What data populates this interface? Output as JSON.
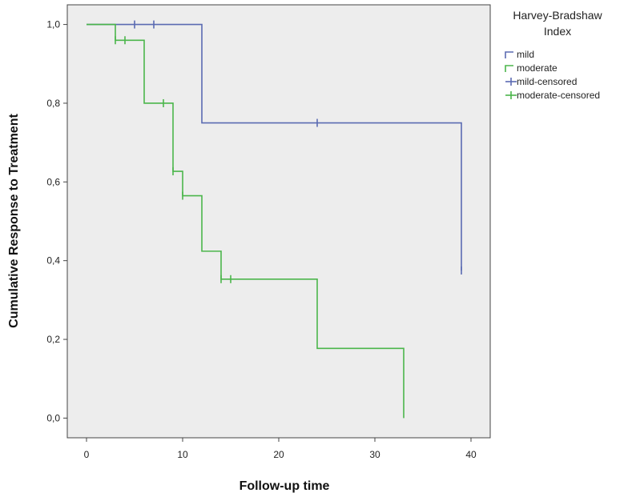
{
  "chart_data": {
    "type": "line",
    "step": true,
    "xlabel": "Follow-up time",
    "ylabel": "Cumulative Response to Treatment",
    "xlim": [
      -2,
      42
    ],
    "ylim": [
      -0.05,
      1.05
    ],
    "xticks": [
      0,
      10,
      20,
      30,
      40
    ],
    "xtick_labels": [
      "0",
      "10",
      "20",
      "30",
      "40"
    ],
    "yticks": [
      0.0,
      0.2,
      0.4,
      0.6,
      0.8,
      1.0
    ],
    "ytick_labels": [
      "0,0",
      "0,2",
      "0,4",
      "0,6",
      "0,8",
      "1,0"
    ],
    "grid": false,
    "plot_background": "#ededed",
    "legend": {
      "title": "Harvey-Bradshaw Index",
      "title_lines": [
        "Harvey-Bradshaw",
        "Index"
      ],
      "placement": "right",
      "entries": [
        {
          "label": "mild",
          "kind": "line",
          "color": "#5b6bb2"
        },
        {
          "label": "moderate",
          "kind": "line",
          "color": "#4bb64b"
        },
        {
          "label": "mild-censored",
          "kind": "censor",
          "color": "#5b6bb2"
        },
        {
          "label": "moderate-censored",
          "kind": "censor",
          "color": "#4bb64b"
        }
      ]
    },
    "series": [
      {
        "name": "mild",
        "color": "#5b6bb2",
        "steps": [
          [
            0,
            1.0
          ],
          [
            12,
            0.75
          ],
          [
            39,
            0.375
          ]
        ],
        "end_x": 39,
        "censored": [
          [
            5,
            1.0
          ],
          [
            7,
            1.0
          ],
          [
            24,
            0.75
          ],
          [
            39,
            0.375
          ]
        ]
      },
      {
        "name": "moderate",
        "color": "#4bb64b",
        "steps": [
          [
            0,
            1.0
          ],
          [
            3,
            0.96
          ],
          [
            6,
            0.8
          ],
          [
            9,
            0.627
          ],
          [
            10,
            0.565
          ],
          [
            12,
            0.424
          ],
          [
            14,
            0.353
          ],
          [
            24,
            0.177
          ],
          [
            33,
            0.0
          ]
        ],
        "end_x": 33,
        "censored": [
          [
            3,
            0.96
          ],
          [
            4,
            0.96
          ],
          [
            8,
            0.8
          ],
          [
            9,
            0.627
          ],
          [
            10,
            0.565
          ],
          [
            14,
            0.353
          ],
          [
            15,
            0.353
          ]
        ]
      }
    ]
  }
}
